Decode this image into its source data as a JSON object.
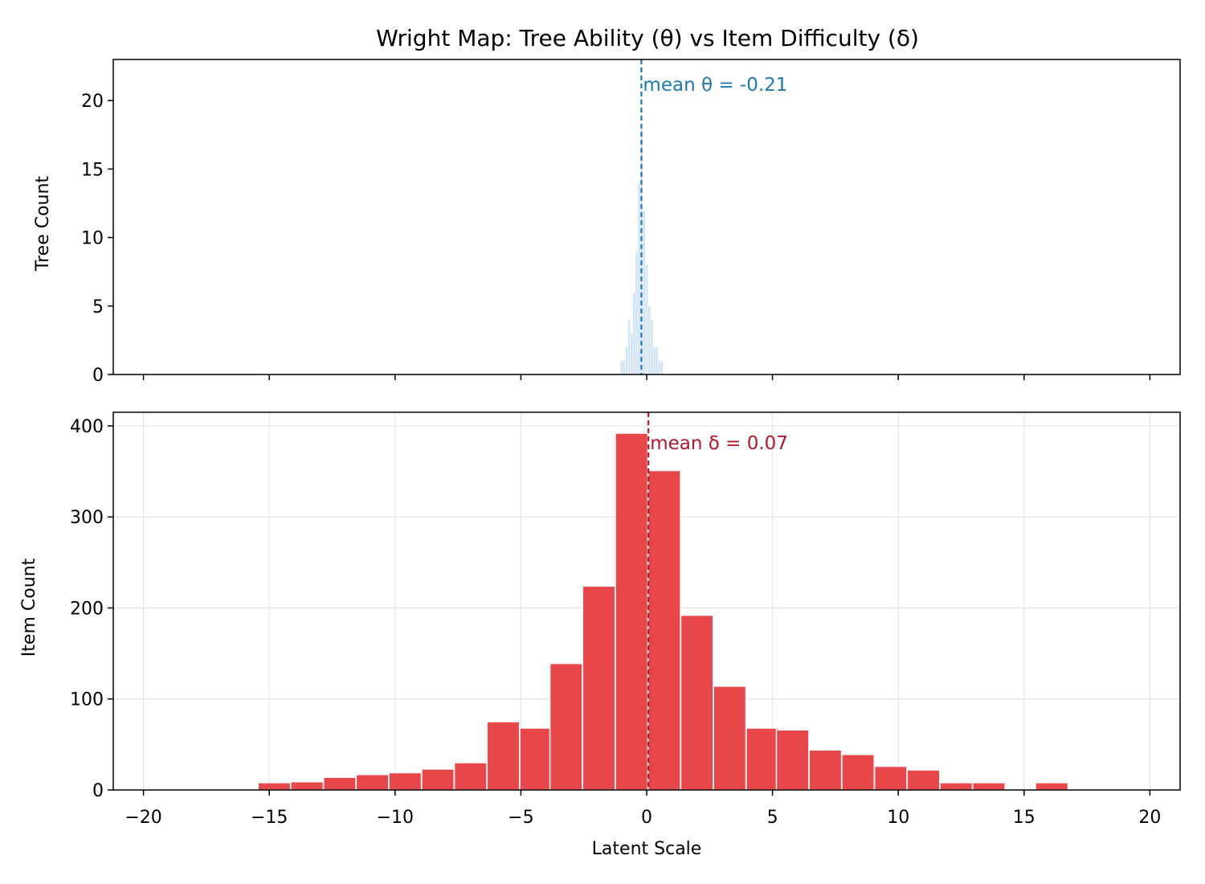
{
  "title": "Wright Map: Tree Ability (θ) vs Item Difficulty (δ)",
  "colors": {
    "tree_fill": "#cfe3f5",
    "tree_mean": "#1f77b4",
    "item_fill": "#e8474a",
    "item_mean": "#b2182b",
    "grid": "#e0e0e0"
  },
  "chart_data": [
    {
      "type": "bar",
      "panel": "top",
      "ylabel": "Tree Count",
      "xlim": [
        -21.2,
        21.2
      ],
      "ylim": [
        0,
        23
      ],
      "yticks": [
        "0",
        "5",
        "10",
        "15",
        "20"
      ],
      "ytick_values": [
        0,
        5,
        10,
        15,
        20
      ],
      "grid": false,
      "mean_label": "mean θ = -0.21",
      "mean": -0.21,
      "bin_width": 0.1,
      "bins": [
        {
          "x": -1.0,
          "count": 1
        },
        {
          "x": -0.9,
          "count": 1
        },
        {
          "x": -0.8,
          "count": 2
        },
        {
          "x": -0.7,
          "count": 4
        },
        {
          "x": -0.6,
          "count": 3
        },
        {
          "x": -0.5,
          "count": 6
        },
        {
          "x": -0.4,
          "count": 9
        },
        {
          "x": -0.3,
          "count": 14
        },
        {
          "x": -0.2,
          "count": 18
        },
        {
          "x": -0.1,
          "count": 12
        },
        {
          "x": 0.0,
          "count": 8
        },
        {
          "x": 0.1,
          "count": 5
        },
        {
          "x": 0.2,
          "count": 4
        },
        {
          "x": 0.3,
          "count": 2
        },
        {
          "x": 0.4,
          "count": 2
        },
        {
          "x": 0.5,
          "count": 1
        },
        {
          "x": 0.6,
          "count": 1
        }
      ]
    },
    {
      "type": "bar",
      "panel": "bottom",
      "xlabel": "Latent Scale",
      "ylabel": "Item Count",
      "xlim": [
        -21.2,
        21.2
      ],
      "ylim": [
        0,
        415
      ],
      "xticks": [
        "−20",
        "−15",
        "−10",
        "−5",
        "0",
        "5",
        "10",
        "15",
        "20"
      ],
      "xtick_values": [
        -20,
        -15,
        -10,
        -5,
        0,
        5,
        10,
        15,
        20
      ],
      "yticks": [
        "0",
        "100",
        "200",
        "300",
        "400"
      ],
      "ytick_values": [
        0,
        100,
        200,
        300,
        400
      ],
      "grid": true,
      "mean_label": "mean δ = 0.07",
      "mean": 0.07,
      "bin_width": 1.29,
      "bins": [
        {
          "x": -14.8,
          "count": 8
        },
        {
          "x": -13.5,
          "count": 9
        },
        {
          "x": -12.2,
          "count": 14
        },
        {
          "x": -10.9,
          "count": 17
        },
        {
          "x": -9.6,
          "count": 19
        },
        {
          "x": -8.3,
          "count": 23
        },
        {
          "x": -7.0,
          "count": 30
        },
        {
          "x": -5.7,
          "count": 75
        },
        {
          "x": -4.4,
          "count": 68
        },
        {
          "x": -3.2,
          "count": 139
        },
        {
          "x": -1.9,
          "count": 224
        },
        {
          "x": -0.6,
          "count": 392
        },
        {
          "x": 0.7,
          "count": 351
        },
        {
          "x": 2.0,
          "count": 192
        },
        {
          "x": 3.3,
          "count": 114
        },
        {
          "x": 4.6,
          "count": 68
        },
        {
          "x": 5.8,
          "count": 66
        },
        {
          "x": 7.1,
          "count": 44
        },
        {
          "x": 8.4,
          "count": 39
        },
        {
          "x": 9.7,
          "count": 26
        },
        {
          "x": 11.0,
          "count": 22
        },
        {
          "x": 12.3,
          "count": 8
        },
        {
          "x": 13.6,
          "count": 8
        },
        {
          "x": 16.1,
          "count": 8
        }
      ]
    }
  ]
}
